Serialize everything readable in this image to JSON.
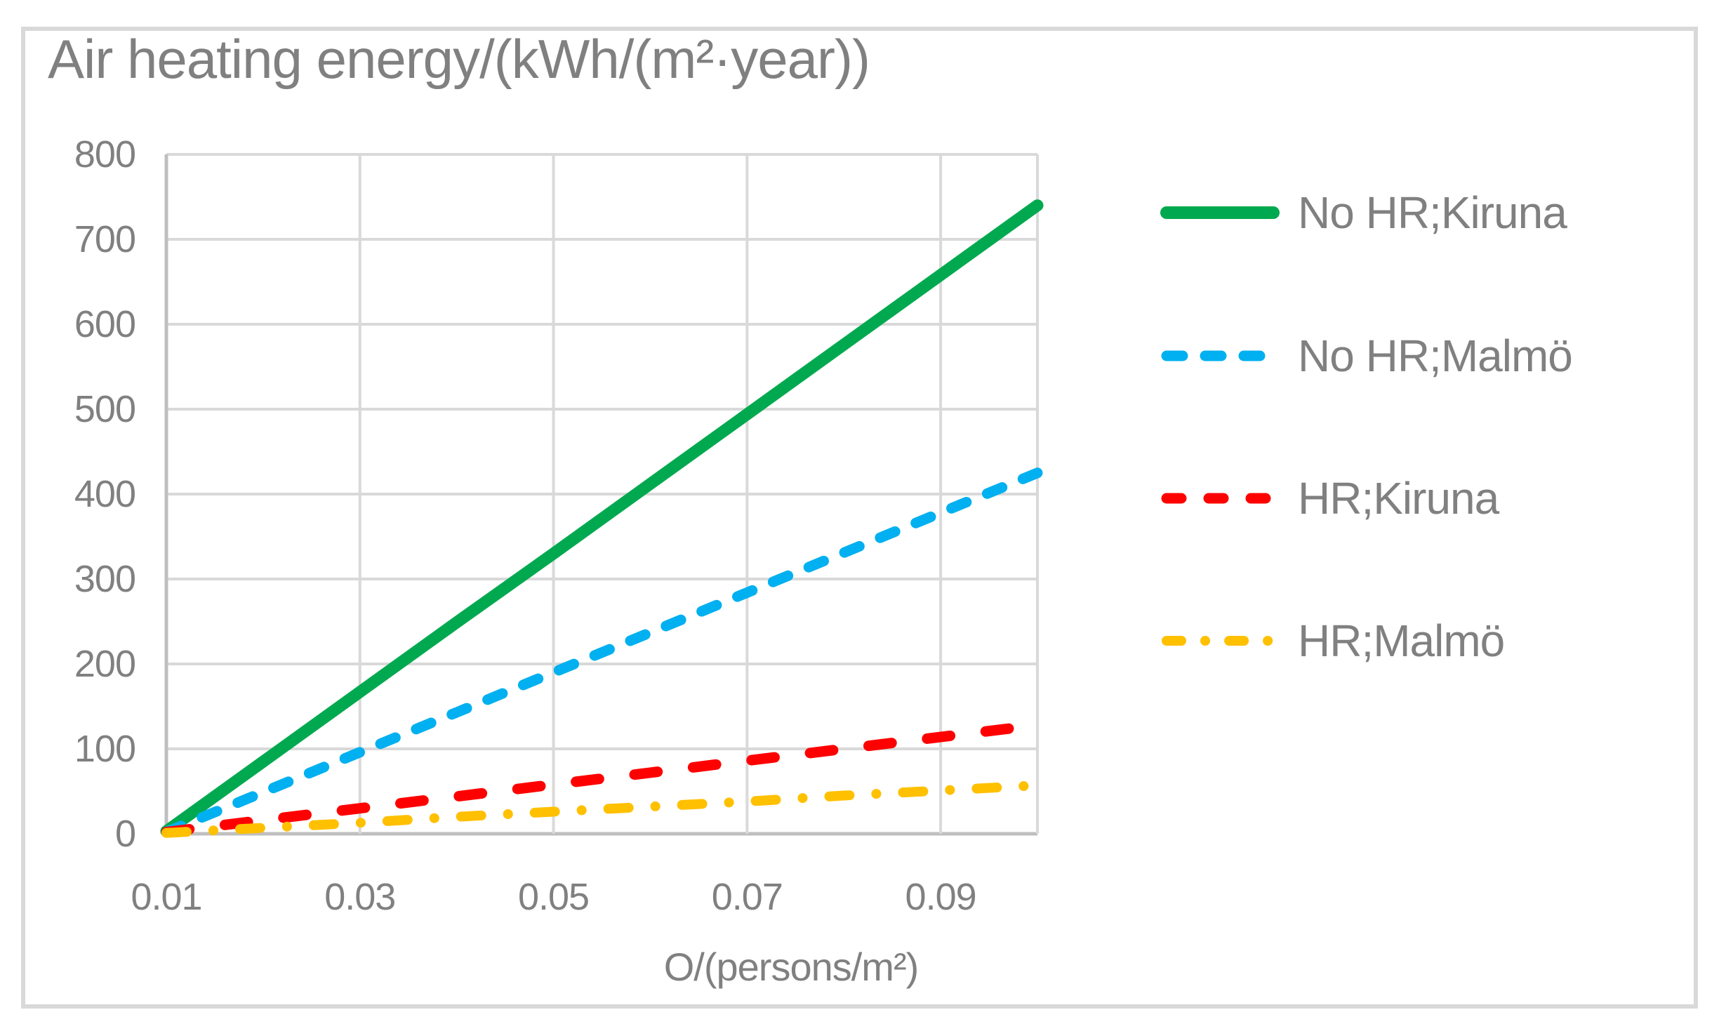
{
  "title": "Air heating energy/(kWh/(m²·year))",
  "colors": {
    "text_gray": "#808080",
    "gridline": "#D9D9D9",
    "axis_line": "#BFBFBF",
    "frame_border": "#D9D9D9",
    "series_green": "#00A94F",
    "series_blue": "#00B0F0",
    "series_red": "#FF0000",
    "series_yellow": "#FFC000"
  },
  "chart_data": {
    "type": "line",
    "title": "Air heating energy/(kWh/(m²·year))",
    "xlabel": "O/(persons/m²)",
    "ylabel": "",
    "xlim": [
      0.01,
      0.1
    ],
    "ylim": [
      0,
      800
    ],
    "grid": true,
    "legend_position": "right",
    "x": [
      0.01,
      0.02,
      0.03,
      0.04,
      0.05,
      0.06,
      0.07,
      0.08,
      0.09,
      0.1
    ],
    "x_ticks": [
      0.01,
      0.03,
      0.05,
      0.07,
      0.09
    ],
    "x_tick_labels": [
      "0.01",
      "0.03",
      "0.05",
      "0.07",
      "0.09"
    ],
    "y_ticks": [
      0,
      100,
      200,
      300,
      400,
      500,
      600,
      700,
      800
    ],
    "y_tick_labels": [
      "0",
      "100",
      "200",
      "300",
      "400",
      "500",
      "600",
      "700",
      "800"
    ],
    "series": [
      {
        "name": "No HR;Kiruna",
        "color": "#00A94F",
        "style": "solid",
        "values": [
          3,
          85,
          167,
          249,
          330,
          412,
          494,
          576,
          658,
          740
        ]
      },
      {
        "name": "No HR;Malmö",
        "color": "#00B0F0",
        "style": "dashed-short",
        "values": [
          2,
          49,
          96,
          143,
          190,
          237,
          284,
          331,
          378,
          425
        ]
      },
      {
        "name": "HR;Kiruna",
        "color": "#FF0000",
        "style": "dashed-long",
        "values": [
          2,
          16,
          30,
          44,
          58,
          72,
          86,
          100,
          114,
          128
        ]
      },
      {
        "name": "HR;Malmö",
        "color": "#FFC000",
        "style": "dash-dot",
        "values": [
          1,
          7,
          13,
          20,
          26,
          32,
          38,
          45,
          51,
          57
        ]
      }
    ]
  }
}
